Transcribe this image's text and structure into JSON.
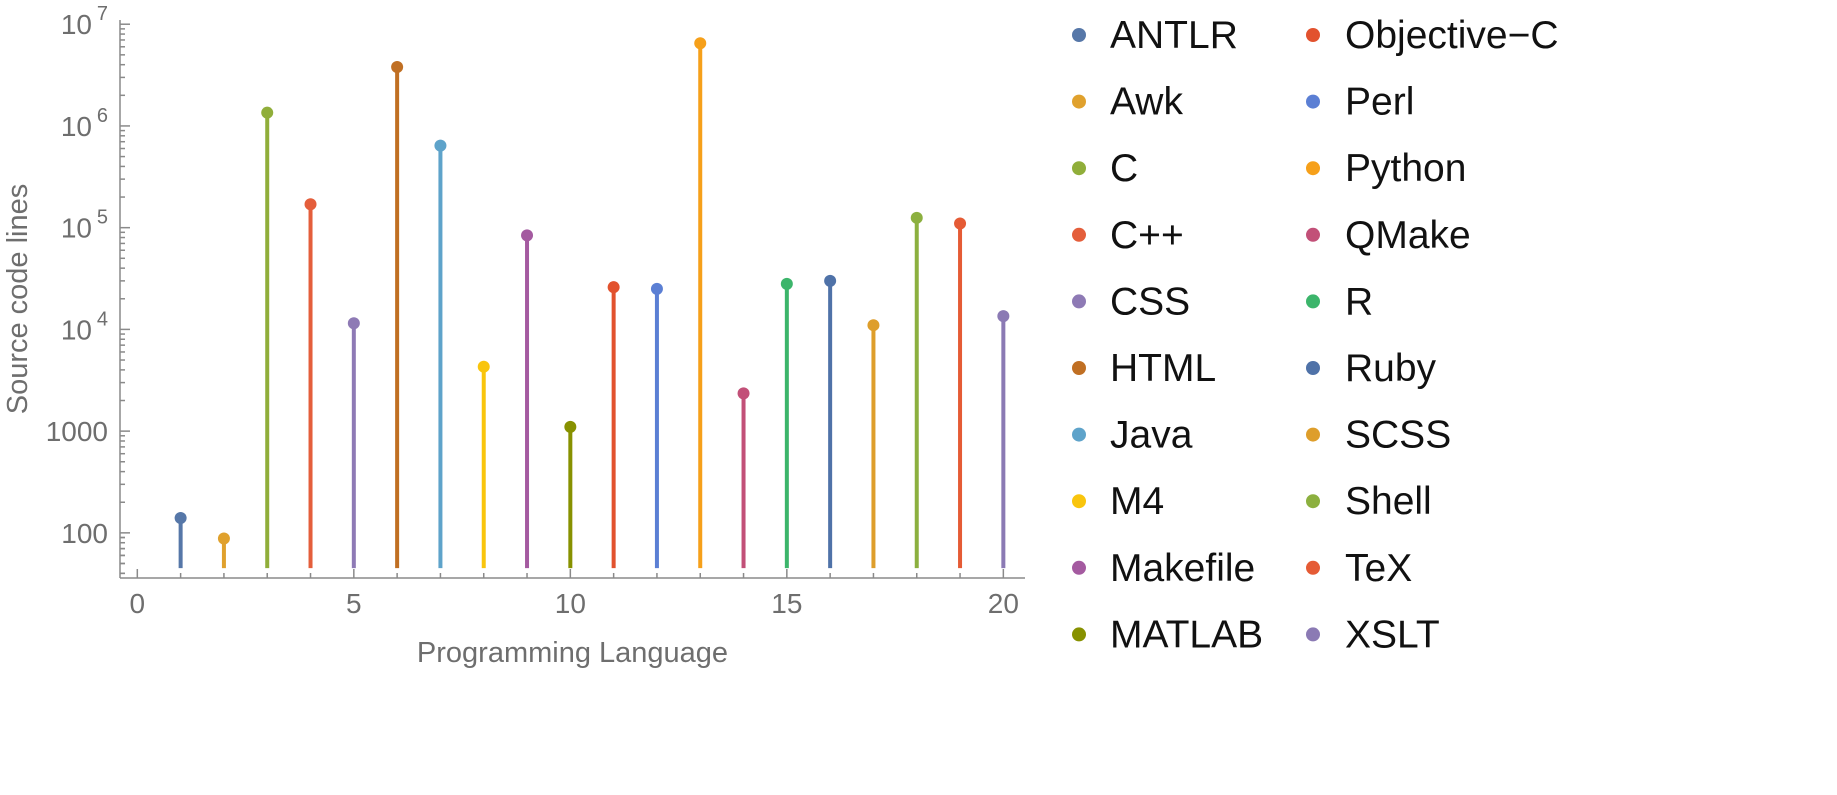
{
  "chart_data": {
    "type": "stem",
    "title": "",
    "xlabel": "Programming Language",
    "ylabel": "Source code lines",
    "yscale": "log",
    "xlim": [
      -0.4,
      20.5
    ],
    "ylim": [
      36,
      11000000
    ],
    "x_ticks": [
      0,
      5,
      10,
      15,
      20
    ],
    "x_tick_labels": [
      "0",
      "5",
      "10",
      "15",
      "20"
    ],
    "y_ticks": [
      100,
      1000,
      10000,
      100000,
      1000000,
      10000000
    ],
    "y_tick_labels": [
      {
        "base": "100",
        "exp": ""
      },
      {
        "base": "1000",
        "exp": ""
      },
      {
        "base": "10",
        "exp": "4"
      },
      {
        "base": "10",
        "exp": "5"
      },
      {
        "base": "10",
        "exp": "6"
      },
      {
        "base": "10",
        "exp": "7"
      }
    ],
    "stem_baseline": 45,
    "legend_position": "right",
    "grid": false,
    "series": [
      {
        "name": "ANTLR",
        "x": 1,
        "y": 140,
        "color": "#5677a8"
      },
      {
        "name": "Awk",
        "x": 2,
        "y": 88,
        "color": "#e0a12d"
      },
      {
        "name": "C",
        "x": 3,
        "y": 1350000,
        "color": "#90ae3a"
      },
      {
        "name": "C++",
        "x": 4,
        "y": 170000,
        "color": "#e45e3b"
      },
      {
        "name": "CSS",
        "x": 5,
        "y": 11500,
        "color": "#8e7ab5"
      },
      {
        "name": "HTML",
        "x": 6,
        "y": 3800000,
        "color": "#c06f23"
      },
      {
        "name": "Java",
        "x": 7,
        "y": 640000,
        "color": "#5ea3ca"
      },
      {
        "name": "M4",
        "x": 8,
        "y": 4300,
        "color": "#f9c50d"
      },
      {
        "name": "Makefile",
        "x": 9,
        "y": 84000,
        "color": "#a45aa0"
      },
      {
        "name": "MATLAB",
        "x": 10,
        "y": 1100,
        "color": "#879100"
      },
      {
        "name": "Objective-C",
        "x": 11,
        "y": 26000,
        "color": "#e2522e"
      },
      {
        "name": "Perl",
        "x": 12,
        "y": 25000,
        "color": "#5b7fd4"
      },
      {
        "name": "Python",
        "x": 13,
        "y": 6500000,
        "color": "#f6a01a"
      },
      {
        "name": "QMake",
        "x": 14,
        "y": 2350,
        "color": "#c25078"
      },
      {
        "name": "R",
        "x": 15,
        "y": 28000,
        "color": "#3cb56b"
      },
      {
        "name": "Ruby",
        "x": 16,
        "y": 30000,
        "color": "#4f72a8"
      },
      {
        "name": "SCSS",
        "x": 17,
        "y": 11000,
        "color": "#de9e2b"
      },
      {
        "name": "Shell",
        "x": 18,
        "y": 125000,
        "color": "#8cb03f"
      },
      {
        "name": "TeX",
        "x": 19,
        "y": 110000,
        "color": "#e55b35"
      },
      {
        "name": "XSLT",
        "x": 20,
        "y": 13500,
        "color": "#8b7ab4"
      }
    ],
    "legend_entries": [
      {
        "name": "ANTLR",
        "display": "ANTLR",
        "color": "#5677a8"
      },
      {
        "name": "Awk",
        "display": "Awk",
        "color": "#e0a12d"
      },
      {
        "name": "C",
        "display": "C",
        "color": "#90ae3a"
      },
      {
        "name": "C++",
        "display": "C++",
        "color": "#e45e3b"
      },
      {
        "name": "CSS",
        "display": "CSS",
        "color": "#8e7ab5"
      },
      {
        "name": "HTML",
        "display": "HTML",
        "color": "#c06f23"
      },
      {
        "name": "Java",
        "display": "Java",
        "color": "#5ea3ca"
      },
      {
        "name": "M4",
        "display": "M4",
        "color": "#f9c50d"
      },
      {
        "name": "Makefile",
        "display": "Makefile",
        "color": "#a45aa0"
      },
      {
        "name": "MATLAB",
        "display": "MATLAB",
        "color": "#879100"
      },
      {
        "name": "Objective-C",
        "display": "Objective−C",
        "color": "#e2522e"
      },
      {
        "name": "Perl",
        "display": "Perl",
        "color": "#5b7fd4"
      },
      {
        "name": "Python",
        "display": "Python",
        "color": "#f6a01a"
      },
      {
        "name": "QMake",
        "display": "QMake",
        "color": "#c25078"
      },
      {
        "name": "R",
        "display": "R",
        "color": "#3cb56b"
      },
      {
        "name": "Ruby",
        "display": "Ruby",
        "color": "#4f72a8"
      },
      {
        "name": "SCSS",
        "display": "SCSS",
        "color": "#de9e2b"
      },
      {
        "name": "Shell",
        "display": "Shell",
        "color": "#8cb03f"
      },
      {
        "name": "TeX",
        "display": "TeX",
        "color": "#e55b35"
      },
      {
        "name": "XSLT",
        "display": "XSLT",
        "color": "#8b7ab4"
      }
    ]
  }
}
